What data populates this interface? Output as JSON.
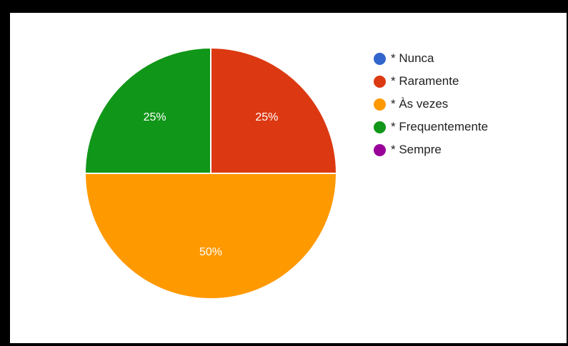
{
  "chart_data": {
    "type": "pie",
    "categories": [
      "* Nunca",
      "* Raramente",
      "* Às vezes",
      "* Frequentemente",
      "* Sempre"
    ],
    "values": [
      0,
      25,
      50,
      25,
      0
    ],
    "value_labels": [
      "",
      "25%",
      "50%",
      "25%",
      ""
    ],
    "colors": [
      "#3366cc",
      "#dc3912",
      "#ff9900",
      "#109618",
      "#990099"
    ],
    "legend_position": "right",
    "start_angle_deg": 0,
    "direction": "clockwise"
  }
}
